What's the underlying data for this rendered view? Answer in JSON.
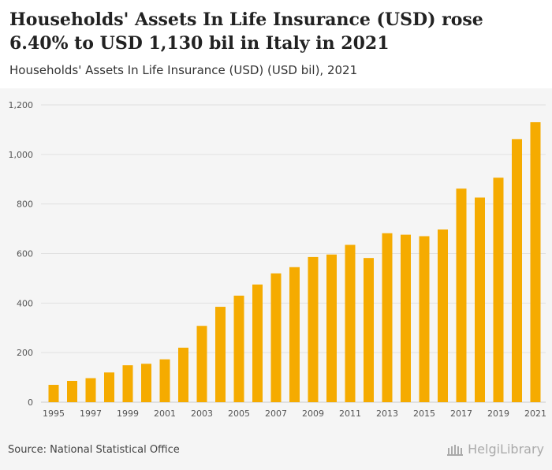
{
  "header": {
    "title": "Households' Assets In Life Insurance (USD) rose 6.40% to USD 1,130 bil in Italy in 2021",
    "subtitle": "Households' Assets In Life Insurance (USD) (USD bil), 2021"
  },
  "footer": {
    "source": "Source: National Statistical Office",
    "brand": "HelgiLibrary"
  },
  "colors": {
    "bar": "#f5ab00",
    "grid": "#e0e0e0",
    "axis_text": "#555555"
  },
  "chart_data": {
    "type": "bar",
    "title": "Households' Assets In Life Insurance (USD) rose 6.40% to USD 1,130 bil in Italy in 2021",
    "subtitle": "Households' Assets In Life Insurance (USD) (USD bil), 2021",
    "xlabel": "",
    "ylabel": "",
    "ylim": [
      0,
      1200
    ],
    "yticks": [
      0,
      200,
      400,
      600,
      800,
      1000,
      1200
    ],
    "ytick_labels": [
      "0",
      "200",
      "400",
      "600",
      "800",
      "1,000",
      "1,200"
    ],
    "grid": true,
    "categories": [
      "1995",
      "1996",
      "1997",
      "1998",
      "1999",
      "2000",
      "2001",
      "2002",
      "2003",
      "2004",
      "2005",
      "2006",
      "2007",
      "2008",
      "2009",
      "2010",
      "2011",
      "2012",
      "2013",
      "2014",
      "2015",
      "2016",
      "2017",
      "2018",
      "2019",
      "2020",
      "2021"
    ],
    "xtick_labels": [
      "1995",
      "",
      "1997",
      "",
      "1999",
      "",
      "2001",
      "",
      "2003",
      "",
      "2005",
      "",
      "2007",
      "",
      "2009",
      "",
      "2011",
      "",
      "2013",
      "",
      "2015",
      "",
      "2017",
      "",
      "2019",
      "",
      "2021"
    ],
    "values": [
      70,
      86,
      97,
      120,
      149,
      155,
      173,
      220,
      308,
      385,
      430,
      475,
      520,
      545,
      586,
      596,
      635,
      582,
      682,
      676,
      670,
      697,
      862,
      826,
      906,
      1062,
      1130
    ]
  }
}
